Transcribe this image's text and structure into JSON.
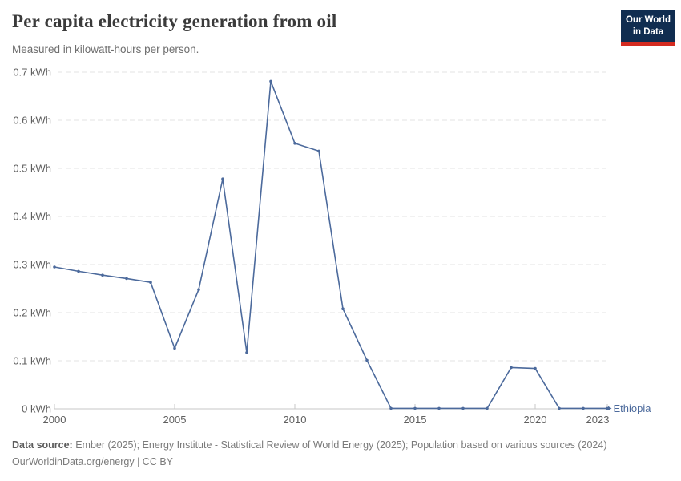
{
  "header": {
    "title": "Per capita electricity generation from oil",
    "subtitle": "Measured in kilowatt-hours per person.",
    "logo": {
      "line1": "Our World",
      "line2": "in Data"
    }
  },
  "chart_data": {
    "type": "line",
    "title": "Per capita electricity generation from oil",
    "unit": "kWh",
    "xlim": [
      2000,
      2023
    ],
    "ylim": [
      0,
      0.7
    ],
    "grid": "horizontal-dashed",
    "legend_position": "end-of-line-label",
    "x": [
      2000,
      2001,
      2002,
      2003,
      2004,
      2005,
      2006,
      2007,
      2008,
      2009,
      2010,
      2011,
      2012,
      2013,
      2014,
      2015,
      2016,
      2017,
      2018,
      2019,
      2020,
      2021,
      2022,
      2023
    ],
    "series": [
      {
        "name": "Ethiopia",
        "values": [
          0.295,
          0.286,
          0.278,
          0.271,
          0.263,
          0.126,
          0.248,
          0.478,
          0.117,
          0.681,
          0.552,
          0.536,
          0.208,
          0.101,
          0.001,
          0.001,
          0.001,
          0.001,
          0.001,
          0.086,
          0.084,
          0.001,
          0.001,
          0.001
        ]
      }
    ],
    "y_ticks": [
      {
        "value": 0,
        "label": "0 kWh"
      },
      {
        "value": 0.1,
        "label": "0.1 kWh"
      },
      {
        "value": 0.2,
        "label": "0.2 kWh"
      },
      {
        "value": 0.3,
        "label": "0.3 kWh"
      },
      {
        "value": 0.4,
        "label": "0.4 kWh"
      },
      {
        "value": 0.5,
        "label": "0.5 kWh"
      },
      {
        "value": 0.6,
        "label": "0.6 kWh"
      },
      {
        "value": 0.7,
        "label": "0.7 kWh"
      }
    ],
    "x_ticks": [
      {
        "value": 2000,
        "label": "2000",
        "label_offset": 0
      },
      {
        "value": 2005,
        "label": "2005",
        "label_offset": 0
      },
      {
        "value": 2010,
        "label": "2010",
        "label_offset": 0
      },
      {
        "value": 2015,
        "label": "2015",
        "label_offset": 0
      },
      {
        "value": 2020,
        "label": "2020",
        "label_offset": 0
      },
      {
        "value": 2023,
        "label": "2023",
        "label_offset": -12
      }
    ]
  },
  "colors": {
    "line": "#4C6A9C",
    "entity_label": "#4C6A9C",
    "grid": "#e3e3e3",
    "axis": "#c7c7c7",
    "tick_text": "#5f5f5f",
    "logo_bg": "#102d50",
    "logo_accent": "#d42b20"
  },
  "footer": {
    "source_label": "Data source:",
    "source_text": " Ember (2025); Energy Institute - Statistical Review of World Energy (2025); Population based on various sources (2024)",
    "attribution": "OurWorldinData.org/energy | CC BY"
  }
}
